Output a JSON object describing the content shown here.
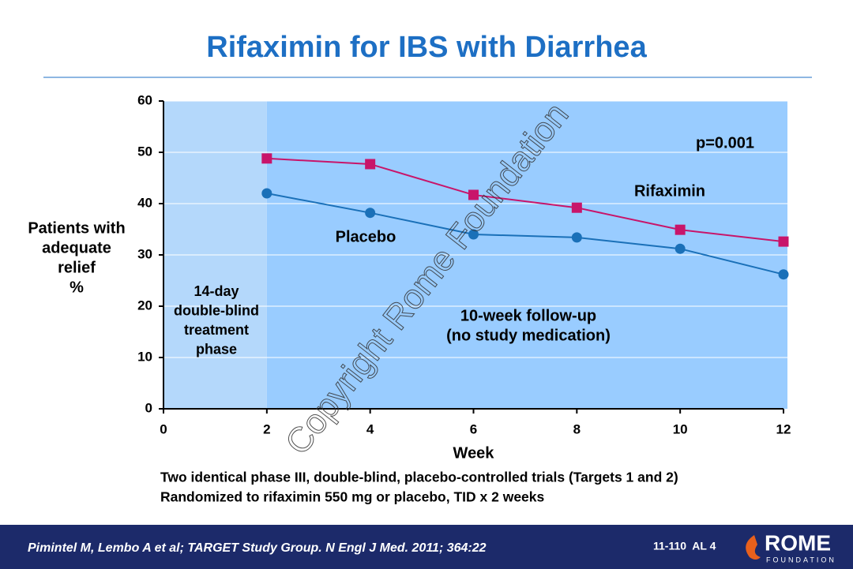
{
  "chart_data": {
    "type": "line",
    "title": "Rifaximin for IBS with Diarrhea",
    "y_label": [
      "Patients with",
      "adequate",
      "relief",
      "%"
    ],
    "x_label": "Week",
    "x": [
      2,
      4,
      6,
      8,
      10,
      12
    ],
    "series": [
      {
        "name": "Rifaximin",
        "color": "#c8156a",
        "marker": "square",
        "values": [
          48.8,
          47.7,
          41.7,
          39.2,
          34.9,
          32.6
        ]
      },
      {
        "name": "Placebo",
        "color": "#1a70b8",
        "marker": "circle",
        "values": [
          42,
          38.2,
          34,
          33.4,
          31.2,
          26.2
        ]
      }
    ],
    "xlim": [
      0,
      12
    ],
    "xticks": [
      0,
      2,
      4,
      6,
      8,
      10,
      12
    ],
    "ylim": [
      0,
      60
    ],
    "yticks": [
      0,
      10,
      20,
      30,
      40,
      50,
      60
    ],
    "grid": true,
    "p_value": "p=0.001",
    "phase_label": [
      "14-day",
      "double-blind",
      "treatment",
      "phase"
    ],
    "followup_label": [
      "10-week follow-up",
      "(no study medication)"
    ],
    "notes": [
      "Two identical phase III, double-blind, placebo-controlled trials (Targets 1 and 2)",
      "Randomized to rifaximin 550 mg or placebo, TID x 2 weeks"
    ],
    "watermark": "Copyright Rome Foundation",
    "footer": {
      "citation": "Pimintel M, Lembo A et al; TARGET Study Group. N Engl J Med. 2011; 364:22",
      "slide_code": "11-110  AL 4",
      "logo": "ROME",
      "logo_sub": "FOUNDATION"
    }
  }
}
